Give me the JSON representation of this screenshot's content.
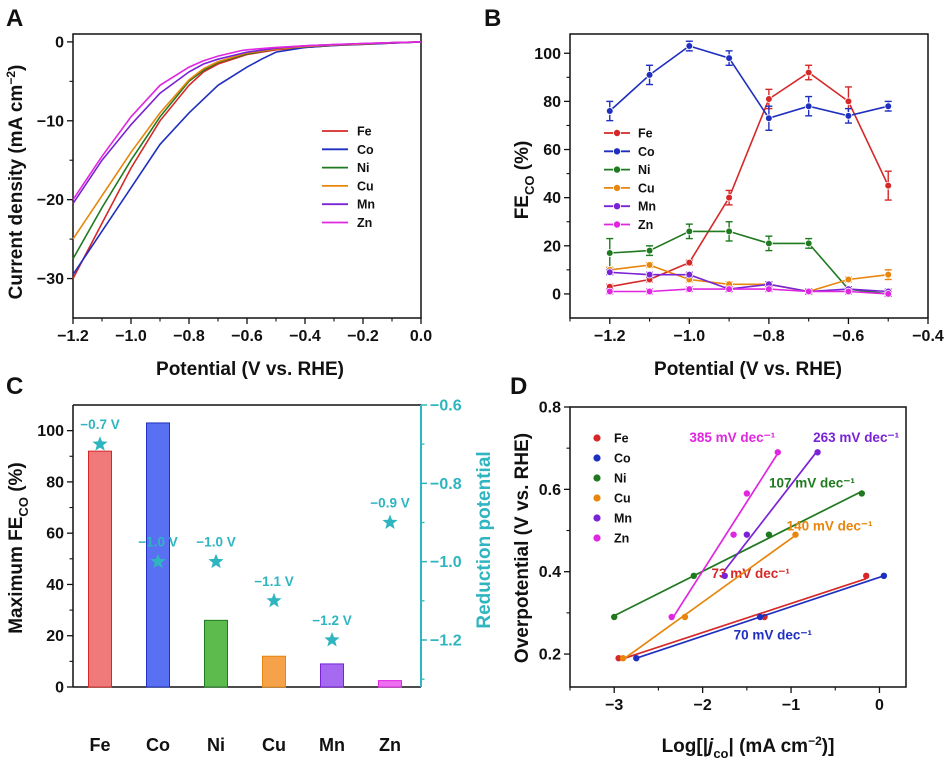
{
  "colors": {
    "Fe": "#d62828",
    "Co": "#1f2fbf",
    "Ni": "#1f7a1f",
    "Cu": "#e8850c",
    "Mn": "#7a22d6",
    "Zn": "#e026e0",
    "teal": "#2eb5c0",
    "barFe": "#f07a7a",
    "barCo": "#5a70f2",
    "barNi": "#5dbb4e",
    "barCu": "#f5a24a",
    "barMn": "#a56af0",
    "barZn": "#ec6ff0"
  },
  "chart_data": [
    {
      "panel": "A",
      "type": "line",
      "xlabel": "Potential (V vs. RHE)",
      "ylabel": "Current density (mA cm",
      "ylabel_sup": "−2",
      "ylabel_close": ")",
      "xlim": [
        -1.2,
        0.0
      ],
      "ylim": [
        -35,
        1
      ],
      "xticks": [
        -1.2,
        -1.0,
        -0.8,
        -0.6,
        -0.4,
        -0.2,
        0.0
      ],
      "xticklabels": [
        "−1.2",
        "−1.0",
        "−0.8",
        "−0.6",
        "−0.4",
        "−0.2",
        "0.0"
      ],
      "yticks": [
        0,
        -10,
        -20,
        -30
      ],
      "yticklabels": [
        "0",
        "−10",
        "−20",
        "−30"
      ],
      "legend": [
        "Fe",
        "Co",
        "Ni",
        "Cu",
        "Mn",
        "Zn"
      ],
      "series": [
        {
          "name": "Fe",
          "x": [
            -1.2,
            -1.1,
            -1.0,
            -0.9,
            -0.8,
            -0.75,
            -0.7,
            -0.6,
            -0.5,
            -0.4,
            -0.3,
            -0.2,
            -0.1,
            0.0
          ],
          "y": [
            -30,
            -23,
            -16,
            -10,
            -5.5,
            -3.8,
            -2.8,
            -1.6,
            -1.0,
            -0.7,
            -0.45,
            -0.3,
            -0.15,
            0
          ]
        },
        {
          "name": "Co",
          "x": [
            -1.2,
            -1.1,
            -1.0,
            -0.9,
            -0.8,
            -0.7,
            -0.6,
            -0.55,
            -0.5,
            -0.4,
            -0.3,
            -0.2,
            -0.1,
            0.0
          ],
          "y": [
            -29.5,
            -24,
            -18.5,
            -13,
            -9,
            -5.5,
            -3.2,
            -2.2,
            -1.3,
            -0.7,
            -0.45,
            -0.3,
            -0.15,
            0
          ]
        },
        {
          "name": "Ni",
          "x": [
            -1.2,
            -1.1,
            -1.0,
            -0.9,
            -0.8,
            -0.75,
            -0.7,
            -0.6,
            -0.5,
            -0.4,
            -0.3,
            -0.2,
            -0.1,
            0.0
          ],
          "y": [
            -27.5,
            -21,
            -15,
            -9.5,
            -5,
            -3.6,
            -2.6,
            -1.5,
            -0.9,
            -0.6,
            -0.4,
            -0.25,
            -0.1,
            0
          ]
        },
        {
          "name": "Cu",
          "x": [
            -1.2,
            -1.1,
            -1.0,
            -0.9,
            -0.8,
            -0.75,
            -0.7,
            -0.6,
            -0.5,
            -0.4,
            -0.3,
            -0.2,
            -0.1,
            0.0
          ],
          "y": [
            -25,
            -19.5,
            -14,
            -9,
            -4.8,
            -3.4,
            -2.5,
            -1.4,
            -0.9,
            -0.6,
            -0.4,
            -0.25,
            -0.1,
            0
          ]
        },
        {
          "name": "Mn",
          "x": [
            -1.2,
            -1.1,
            -1.0,
            -0.9,
            -0.8,
            -0.75,
            -0.7,
            -0.6,
            -0.5,
            -0.4,
            -0.3,
            -0.2,
            -0.1,
            0.0
          ],
          "y": [
            -20.5,
            -15,
            -10.5,
            -6.5,
            -3.8,
            -2.8,
            -2.2,
            -1.3,
            -0.8,
            -0.5,
            -0.35,
            -0.2,
            -0.1,
            0
          ]
        },
        {
          "name": "Zn",
          "x": [
            -1.2,
            -1.1,
            -1.0,
            -0.9,
            -0.8,
            -0.75,
            -0.7,
            -0.62,
            -0.6,
            -0.5,
            -0.4,
            -0.3,
            -0.2,
            -0.1,
            0.0
          ],
          "y": [
            -20,
            -14.5,
            -9.5,
            -5.5,
            -3.2,
            -2.4,
            -1.8,
            -1.1,
            -1.0,
            -0.7,
            -0.5,
            -0.35,
            -0.2,
            -0.1,
            0
          ]
        }
      ]
    },
    {
      "panel": "B",
      "type": "line",
      "xlabel": "Potential (V vs. RHE)",
      "ylabel": "FE",
      "ylabel_sub": "CO",
      "ylabel_tail": " (%)",
      "xlim": [
        -1.3,
        -0.4
      ],
      "ylim": [
        -10,
        108
      ],
      "xticks": [
        -1.2,
        -1.0,
        -0.8,
        -0.6,
        -0.4
      ],
      "xticklabels": [
        "−1.2",
        "−1.0",
        "−0.8",
        "−0.6",
        "−0.4"
      ],
      "yticks": [
        0,
        20,
        40,
        60,
        80,
        100
      ],
      "yticklabels": [
        "0",
        "20",
        "40",
        "60",
        "80",
        "100"
      ],
      "legend": [
        "Fe",
        "Co",
        "Ni",
        "Cu",
        "Mn",
        "Zn"
      ],
      "x": [
        -1.2,
        -1.1,
        -1.0,
        -0.9,
        -0.8,
        -0.7,
        -0.6,
        -0.5
      ],
      "series": [
        {
          "name": "Fe",
          "values": [
            3,
            6,
            13,
            40,
            81,
            92,
            80,
            45
          ],
          "err": [
            1,
            1,
            1,
            3,
            4,
            3,
            6,
            6
          ]
        },
        {
          "name": "Co",
          "values": [
            76,
            91,
            103,
            98,
            73,
            78,
            74,
            78
          ],
          "err": [
            4,
            4,
            2,
            3,
            5,
            4,
            3,
            2
          ]
        },
        {
          "name": "Ni",
          "values": [
            17,
            18,
            26,
            26,
            21,
            21,
            2,
            0
          ],
          "err": [
            6,
            2,
            3,
            4,
            3,
            2,
            1,
            1
          ]
        },
        {
          "name": "Cu",
          "values": [
            10,
            12,
            6,
            4,
            4,
            1,
            6,
            8
          ],
          "err": [
            1,
            1,
            1,
            1,
            1,
            1,
            1,
            2
          ]
        },
        {
          "name": "Mn",
          "values": [
            9,
            8,
            8,
            2,
            4,
            1,
            2,
            1
          ],
          "err": [
            1,
            1,
            1,
            1,
            1,
            1,
            1,
            1
          ]
        },
        {
          "name": "Zn",
          "values": [
            1,
            1,
            2,
            2,
            2,
            1,
            1,
            0
          ],
          "err": [
            1,
            1,
            1,
            1,
            1,
            1,
            1,
            1
          ]
        }
      ]
    },
    {
      "panel": "C",
      "type": "bar",
      "categories": [
        "Fe",
        "Co",
        "Ni",
        "Cu",
        "Mn",
        "Zn"
      ],
      "values": [
        92,
        103,
        26,
        12,
        9,
        2.5
      ],
      "ylabel": "Maximum FE",
      "ylabel_sub": "CO",
      "ylabel_tail": " (%)",
      "ylim": [
        0,
        110
      ],
      "yticks": [
        0,
        20,
        40,
        60,
        80,
        100
      ],
      "yticklabels": [
        "0",
        "20",
        "40",
        "60",
        "80",
        "100"
      ],
      "y2label": "Reduction potential",
      "y2lim": [
        -1.32,
        -0.6
      ],
      "y2ticks": [
        -0.6,
        -0.8,
        -1.0,
        -1.2
      ],
      "y2ticklabels": [
        "−0.6",
        "−0.8",
        "−1.0",
        "−1.2"
      ],
      "potentials": [
        -0.7,
        -1.0,
        -1.0,
        -1.1,
        -1.2,
        -0.9
      ],
      "potential_labels": [
        "−0.7 V",
        "−1.0 V",
        "−1.0 V",
        "−1.1 V",
        "−1.2 V",
        "−0.9 V"
      ]
    },
    {
      "panel": "D",
      "type": "scatter",
      "xlabel_pre": "Log[|",
      "xlabel_j": "j",
      "xlabel_sub": "co",
      "xlabel_post": "| (mA cm",
      "xlabel_sup": "−2",
      "xlabel_end": ")]",
      "ylabel": "Overpotential (V vs. RHE)",
      "xlim": [
        -3.5,
        0.3
      ],
      "ylim": [
        0.12,
        0.8
      ],
      "xticks": [
        -3,
        -2,
        -1,
        0
      ],
      "xticklabels": [
        "−3",
        "−2",
        "−1",
        "0"
      ],
      "yticks": [
        0.2,
        0.4,
        0.6,
        0.8
      ],
      "yticklabels": [
        "0.2",
        "0.4",
        "0.6",
        "0.8"
      ],
      "legend": [
        "Fe",
        "Co",
        "Ni",
        "Cu",
        "Mn",
        "Zn"
      ],
      "series": [
        {
          "name": "Fe",
          "points": [
            [
              -2.95,
              0.19
            ],
            [
              -1.3,
              0.29
            ],
            [
              -0.15,
              0.39
            ]
          ],
          "slope": "73 mV dec⁻¹"
        },
        {
          "name": "Co",
          "points": [
            [
              -2.75,
              0.19
            ],
            [
              -1.35,
              0.29
            ],
            [
              0.05,
              0.39
            ]
          ],
          "slope": "70 mV dec⁻¹"
        },
        {
          "name": "Ni",
          "points": [
            [
              -3.0,
              0.29
            ],
            [
              -2.1,
              0.39
            ],
            [
              -1.25,
              0.49
            ],
            [
              -0.2,
              0.59
            ]
          ],
          "slope": "107 mV dec⁻¹"
        },
        {
          "name": "Cu",
          "points": [
            [
              -2.9,
              0.19
            ],
            [
              -2.2,
              0.29
            ],
            [
              -0.95,
              0.49
            ]
          ],
          "slope": "140 mV dec⁻¹"
        },
        {
          "name": "Mn",
          "points": [
            [
              -1.75,
              0.39
            ],
            [
              -1.5,
              0.49
            ],
            [
              -0.7,
              0.69
            ]
          ],
          "slope": "263 mV dec⁻¹"
        },
        {
          "name": "Zn",
          "points": [
            [
              -2.35,
              0.29
            ],
            [
              -1.65,
              0.49
            ],
            [
              -1.5,
              0.59
            ],
            [
              -1.15,
              0.69
            ]
          ],
          "slope": "385 mV dec⁻¹"
        }
      ]
    }
  ]
}
